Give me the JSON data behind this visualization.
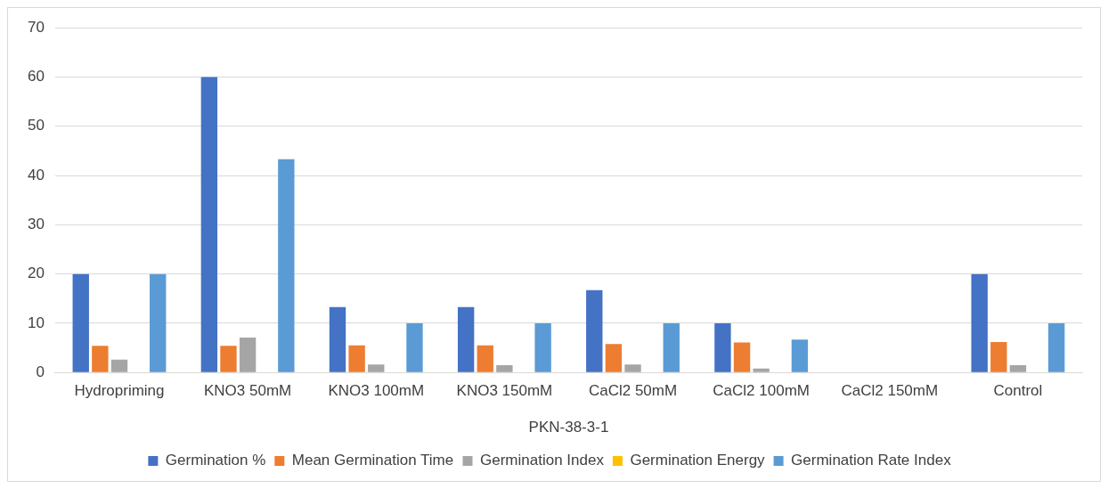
{
  "chart_data": {
    "type": "bar",
    "xlabel": "PKN-38-3-1",
    "categories": [
      "Hydropriming",
      "KNO3 50mM",
      "KNO3 100mM",
      "KNO3 150mM",
      "CaCl2 50mM",
      "CaCl2 100mM",
      "CaCl2 150mM",
      "Control"
    ],
    "series": [
      {
        "name": "Germination %",
        "color": "#4472c4",
        "values": [
          20,
          60,
          13.3,
          13.3,
          16.7,
          10,
          0,
          20
        ]
      },
      {
        "name": "Mean Germination Time",
        "color": "#ed7d31",
        "values": [
          5.4,
          5.4,
          5.5,
          5.5,
          5.8,
          6.1,
          0,
          6.2
        ]
      },
      {
        "name": "Germination Index",
        "color": "#a5a5a5",
        "values": [
          2.6,
          7.1,
          1.6,
          1.5,
          1.6,
          0.8,
          0,
          1.5
        ]
      },
      {
        "name": "Germination Energy",
        "color": "#ffc000",
        "values": [
          0,
          0,
          0,
          0,
          0,
          0,
          0,
          0
        ]
      },
      {
        "name": "Germination Rate Index",
        "color": "#5b9bd5",
        "values": [
          20,
          43.3,
          10,
          10,
          10,
          6.7,
          0,
          10
        ]
      }
    ],
    "ylim": [
      0,
      70
    ],
    "yticks": [
      0,
      10,
      20,
      30,
      40,
      50,
      60,
      70
    ],
    "grid": "y",
    "legend": "bottom"
  }
}
